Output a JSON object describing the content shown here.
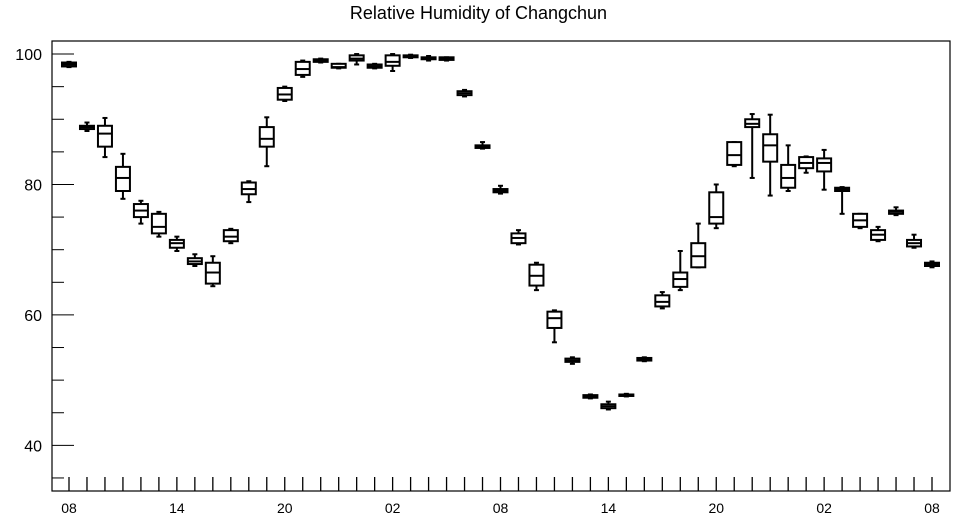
{
  "chart_data": {
    "type": "box",
    "title": "Relative Humidity of Changchun",
    "xlabel": "",
    "ylabel": "",
    "ylim": [
      33,
      102
    ],
    "y_major_ticks": [
      40,
      60,
      80,
      100
    ],
    "y_minor_step": 5,
    "x_tick_labels": [
      "08",
      "14",
      "20",
      "02",
      "08",
      "14",
      "20",
      "02",
      "08"
    ],
    "x_tick_label_index": [
      0,
      6,
      12,
      18,
      24,
      30,
      36,
      42,
      48
    ],
    "grid": false,
    "colors": {
      "box": "#000000",
      "background": "#ffffff"
    },
    "boxes": [
      {
        "i": 0,
        "min": 98.0,
        "q1": 98.1,
        "med": 98.4,
        "q3": 98.7,
        "max": 98.8
      },
      {
        "i": 1,
        "min": 88.2,
        "q1": 88.5,
        "med": 88.8,
        "q3": 89.0,
        "max": 89.5
      },
      {
        "i": 2,
        "min": 84.2,
        "q1": 85.8,
        "med": 87.8,
        "q3": 89.0,
        "max": 90.2
      },
      {
        "i": 3,
        "min": 77.8,
        "q1": 79.0,
        "med": 81.0,
        "q3": 82.7,
        "max": 84.7
      },
      {
        "i": 4,
        "min": 74.0,
        "q1": 75.0,
        "med": 76.0,
        "q3": 77.0,
        "max": 77.5
      },
      {
        "i": 5,
        "min": 72.0,
        "q1": 72.5,
        "med": 73.5,
        "q3": 75.5,
        "max": 75.8
      },
      {
        "i": 6,
        "min": 69.8,
        "q1": 70.3,
        "med": 71.0,
        "q3": 71.5,
        "max": 72.0
      },
      {
        "i": 7,
        "min": 67.5,
        "q1": 67.8,
        "med": 68.2,
        "q3": 68.7,
        "max": 69.3
      },
      {
        "i": 8,
        "min": 64.4,
        "q1": 64.8,
        "med": 66.5,
        "q3": 68.0,
        "max": 69.0
      },
      {
        "i": 9,
        "min": 71.0,
        "q1": 71.3,
        "med": 72.0,
        "q3": 73.0,
        "max": 73.2
      },
      {
        "i": 10,
        "min": 77.3,
        "q1": 78.5,
        "med": 79.3,
        "q3": 80.3,
        "max": 80.5
      },
      {
        "i": 11,
        "min": 82.8,
        "q1": 85.8,
        "med": 87.0,
        "q3": 88.8,
        "max": 90.3
      },
      {
        "i": 12,
        "min": 92.8,
        "q1": 93.0,
        "med": 93.8,
        "q3": 94.8,
        "max": 95.0
      },
      {
        "i": 13,
        "min": 96.5,
        "q1": 96.8,
        "med": 97.7,
        "q3": 98.8,
        "max": 99.0
      },
      {
        "i": 14,
        "min": 98.7,
        "q1": 98.8,
        "med": 99.0,
        "q3": 99.2,
        "max": 99.3
      },
      {
        "i": 15,
        "min": 97.8,
        "q1": 97.9,
        "med": 98.0,
        "q3": 98.5,
        "max": 98.5
      },
      {
        "i": 16,
        "min": 98.4,
        "q1": 99.0,
        "med": 99.3,
        "q3": 99.8,
        "max": 100.0
      },
      {
        "i": 17,
        "min": 97.8,
        "q1": 97.9,
        "med": 98.1,
        "q3": 98.4,
        "max": 98.5
      },
      {
        "i": 18,
        "min": 97.4,
        "q1": 98.2,
        "med": 98.8,
        "q3": 99.8,
        "max": 100.0
      },
      {
        "i": 19,
        "min": 99.4,
        "q1": 99.5,
        "med": 99.6,
        "q3": 99.8,
        "max": 99.9
      },
      {
        "i": 20,
        "min": 99.0,
        "q1": 99.2,
        "med": 99.4,
        "q3": 99.5,
        "max": 99.7
      },
      {
        "i": 21,
        "min": 99.0,
        "q1": 99.1,
        "med": 99.3,
        "q3": 99.5,
        "max": 99.5
      },
      {
        "i": 22,
        "min": 93.5,
        "q1": 93.7,
        "med": 94.0,
        "q3": 94.3,
        "max": 94.5
      },
      {
        "i": 23,
        "min": 85.5,
        "q1": 85.6,
        "med": 85.8,
        "q3": 86.0,
        "max": 86.5
      },
      {
        "i": 24,
        "min": 78.6,
        "q1": 78.8,
        "med": 79.0,
        "q3": 79.3,
        "max": 79.8
      },
      {
        "i": 25,
        "min": 70.8,
        "q1": 71.0,
        "med": 71.8,
        "q3": 72.5,
        "max": 73.0
      },
      {
        "i": 26,
        "min": 63.8,
        "q1": 64.5,
        "med": 66.0,
        "q3": 67.7,
        "max": 68.0
      },
      {
        "i": 27,
        "min": 55.8,
        "q1": 58.0,
        "med": 59.5,
        "q3": 60.5,
        "max": 60.7
      },
      {
        "i": 28,
        "min": 52.5,
        "q1": 52.8,
        "med": 53.0,
        "q3": 53.3,
        "max": 53.5
      },
      {
        "i": 29,
        "min": 47.2,
        "q1": 47.3,
        "med": 47.5,
        "q3": 47.7,
        "max": 47.8
      },
      {
        "i": 30,
        "min": 45.5,
        "q1": 45.7,
        "med": 46.0,
        "q3": 46.3,
        "max": 46.7
      },
      {
        "i": 31,
        "min": 47.5,
        "q1": 47.6,
        "med": 47.7,
        "q3": 47.8,
        "max": 47.9
      },
      {
        "i": 32,
        "min": 52.9,
        "q1": 53.0,
        "med": 53.2,
        "q3": 53.4,
        "max": 53.5
      },
      {
        "i": 33,
        "min": 61.0,
        "q1": 61.3,
        "med": 62.0,
        "q3": 63.0,
        "max": 63.5
      },
      {
        "i": 34,
        "min": 63.8,
        "q1": 64.3,
        "med": 65.5,
        "q3": 66.5,
        "max": 69.8
      },
      {
        "i": 35,
        "min": 67.3,
        "q1": 67.3,
        "med": 69.0,
        "q3": 71.0,
        "max": 74.0
      },
      {
        "i": 36,
        "min": 73.3,
        "q1": 74.0,
        "med": 75.0,
        "q3": 78.8,
        "max": 80.0
      },
      {
        "i": 37,
        "min": 82.8,
        "q1": 83.0,
        "med": 84.5,
        "q3": 86.5,
        "max": 86.5
      },
      {
        "i": 38,
        "min": 81.0,
        "q1": 88.8,
        "med": 89.3,
        "q3": 90.0,
        "max": 90.8
      },
      {
        "i": 39,
        "min": 78.3,
        "q1": 83.5,
        "med": 86.0,
        "q3": 87.7,
        "max": 90.7
      },
      {
        "i": 40,
        "min": 79.0,
        "q1": 79.5,
        "med": 81.0,
        "q3": 83.0,
        "max": 86.0
      },
      {
        "i": 41,
        "min": 81.8,
        "q1": 82.5,
        "med": 83.3,
        "q3": 84.2,
        "max": 84.3
      },
      {
        "i": 42,
        "min": 79.2,
        "q1": 82.0,
        "med": 83.3,
        "q3": 84.0,
        "max": 85.3
      },
      {
        "i": 43,
        "min": 75.5,
        "q1": 79.0,
        "med": 79.3,
        "q3": 79.5,
        "max": 79.6
      },
      {
        "i": 44,
        "min": 73.3,
        "q1": 73.5,
        "med": 74.5,
        "q3": 75.5,
        "max": 75.5
      },
      {
        "i": 45,
        "min": 71.3,
        "q1": 71.5,
        "med": 72.3,
        "q3": 73.0,
        "max": 73.5
      },
      {
        "i": 46,
        "min": 75.3,
        "q1": 75.5,
        "med": 75.8,
        "q3": 76.0,
        "max": 76.5
      },
      {
        "i": 47,
        "min": 70.3,
        "q1": 70.5,
        "med": 71.0,
        "q3": 71.5,
        "max": 72.3
      },
      {
        "i": 48,
        "min": 67.3,
        "q1": 67.5,
        "med": 67.8,
        "q3": 68.0,
        "max": 68.2
      }
    ]
  }
}
